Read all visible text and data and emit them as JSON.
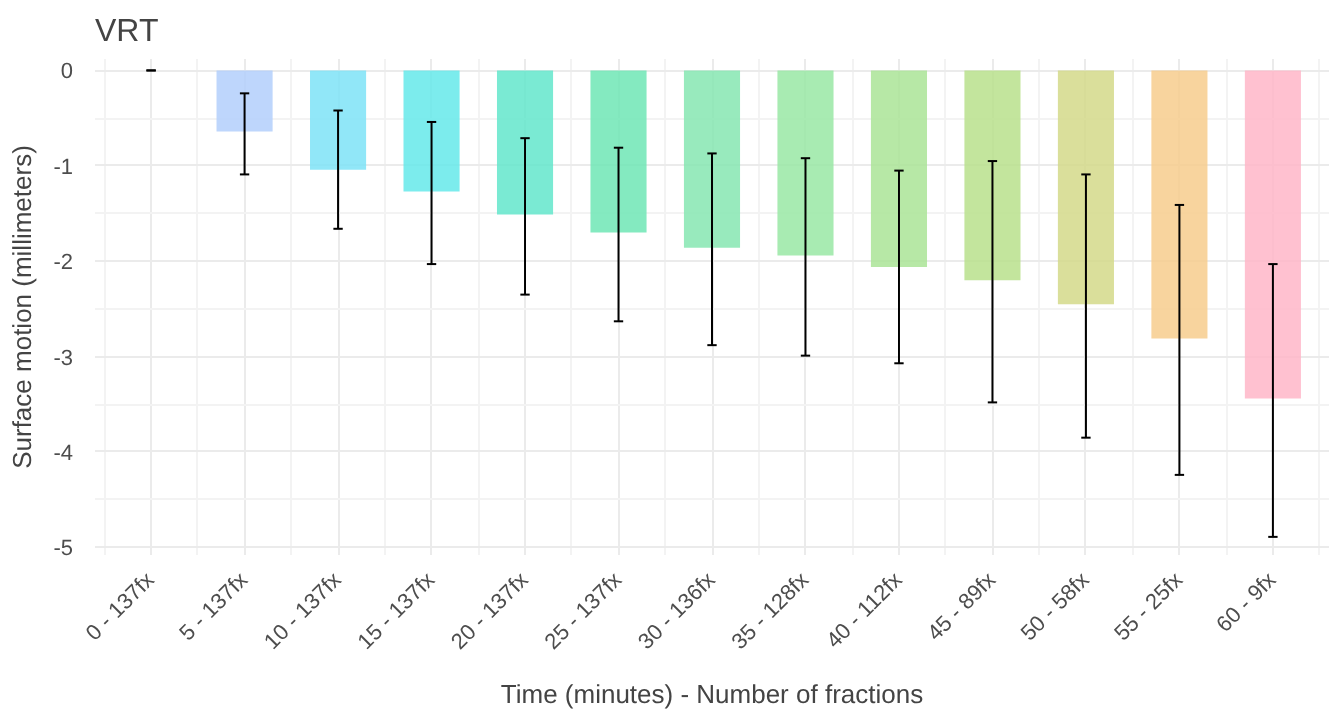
{
  "chart_data": {
    "type": "bar",
    "title": "VRT",
    "xlabel": "Time (minutes) - Number of fractions",
    "ylabel": "Surface motion (millimeters)",
    "categories": [
      "0 - 137fx",
      "5 - 137fx",
      "10 - 137fx",
      "15 - 137fx",
      "20 - 137fx",
      "25 - 137fx",
      "30 - 136fx",
      "35 - 128fx",
      "40 - 112fx",
      "45 - 89fx",
      "50 - 58fx",
      "55 - 25fx",
      "60 - 9fx"
    ],
    "values": [
      0,
      -0.64,
      -1.04,
      -1.27,
      -1.51,
      -1.7,
      -1.86,
      -1.94,
      -2.06,
      -2.2,
      -2.45,
      -2.81,
      -3.44
    ],
    "errors": [
      [
        0,
        0
      ],
      [
        -1.09,
        -0.24
      ],
      [
        -1.66,
        -0.42
      ],
      [
        -2.03,
        -0.54
      ],
      [
        -2.35,
        -0.71
      ],
      [
        -2.63,
        -0.81
      ],
      [
        -2.88,
        -0.87
      ],
      [
        -2.99,
        -0.92
      ],
      [
        -3.07,
        -1.05
      ],
      [
        -3.48,
        -0.95
      ],
      [
        -3.85,
        -1.09
      ],
      [
        -4.24,
        -1.41
      ],
      [
        -4.89,
        -2.03
      ]
    ],
    "colors": [
      "#c2c2f5",
      "#b3cffc",
      "#7ee3f7",
      "#65e9ea",
      "#63e6cb",
      "#6ee6b5",
      "#86e6b2",
      "#99e7a4",
      "#aae496",
      "#b8e08c",
      "#d3d98a",
      "#f7cd8d",
      "#ffb6c8"
    ],
    "ylim": [
      -5.08,
      0.12
    ],
    "yticks": [
      0,
      -1,
      -2,
      -3,
      -4,
      -5
    ],
    "grid": true
  }
}
